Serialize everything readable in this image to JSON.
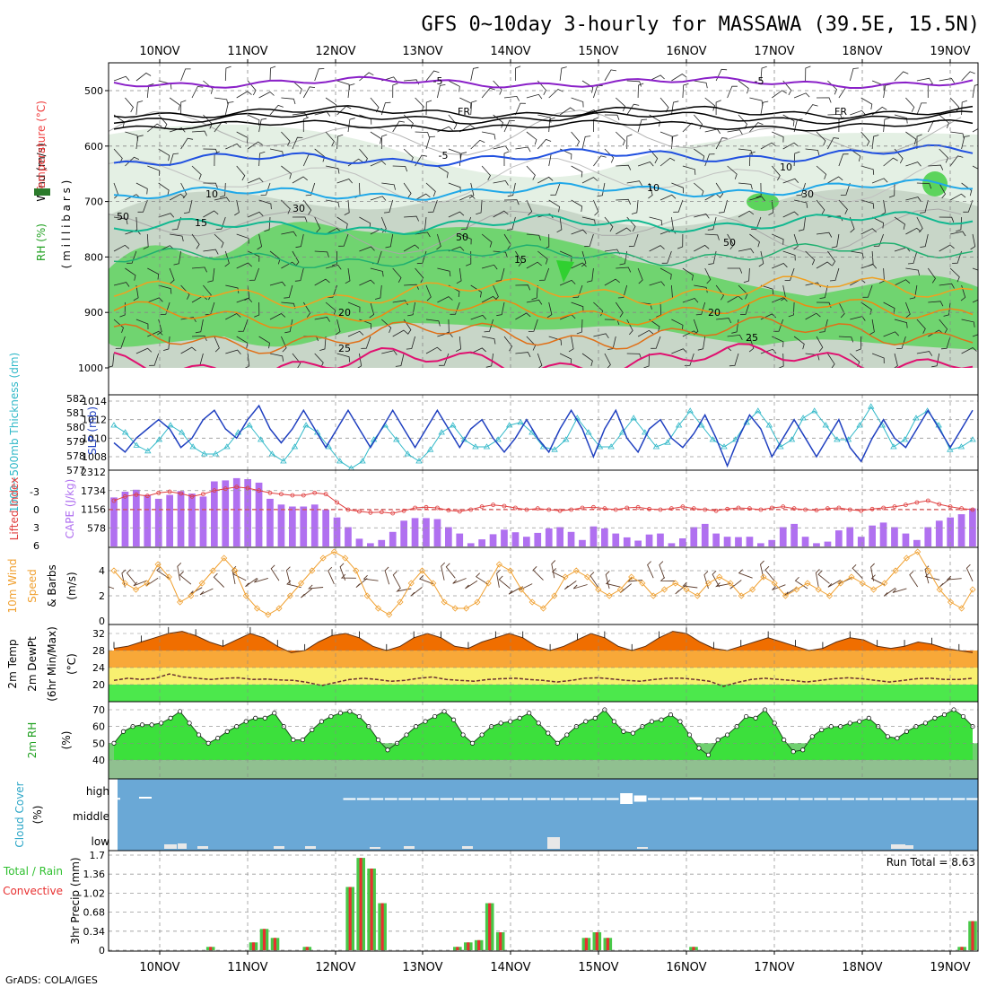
{
  "title": "GFS 0~10day 3-hourly for MASSAWA (39.5E, 15.5N)",
  "footer": "GrADS: COLA/IGES",
  "run_total": "Run Total = 8.63",
  "dates": [
    "10NOV",
    "11NOV",
    "12NOV",
    "13NOV",
    "14NOV",
    "15NOV",
    "16NOV",
    "17NOV",
    "18NOV",
    "19NOV"
  ],
  "colors": {
    "rh_light": "#e4f0e4",
    "rh_mid": "#c8d6c8",
    "rh_green": "#70d470",
    "cape": "#b070f0",
    "li": "#e04040",
    "slp": "#2040c0",
    "thick": "#30b8c8",
    "wind": "#f0a030",
    "temp_dark": "#f06e00",
    "temp_mid": "#f8a838",
    "temp_yellow": "#f8f070",
    "temp_green": "#4ce84c",
    "rh2m": "#3ce03c",
    "cloud": "#6aa8d6",
    "rain": "#48c848",
    "conv": "#e83030"
  },
  "panels": {
    "upper": {
      "ylabel_wind": "Wind (m/s)",
      "ylabel_temp": "Temperature (°C)",
      "ylabel_mb": "( m i l l i b a r s )",
      "ylabel_rh": "RH (%)",
      "yticks": [
        "500",
        "600",
        "700",
        "800",
        "900",
        "1000"
      ],
      "isotherm_labels": [
        "-5",
        "-5",
        "FR",
        "FR",
        "-5",
        "10",
        "10",
        "15",
        "15",
        "20",
        "20",
        "25",
        "25"
      ],
      "rh_labels": [
        "50",
        "30",
        "50",
        "10",
        "30",
        "50"
      ]
    },
    "slp": {
      "ylabel_thick": "1000~500mb Thickness (dm)",
      "ylabel_slp": "SLP (mb)",
      "left_ticks": [
        "582",
        "581",
        "580",
        "579",
        "578",
        "577"
      ],
      "right_ticks": [
        "1014",
        "1012",
        "1010",
        "1008"
      ]
    },
    "cape": {
      "ylabel_li": "Lifted Index",
      "ylabel_cape": "CAPE (J/kg)",
      "left_ticks": [
        "-3",
        "0",
        "3",
        "6"
      ],
      "right_ticks": [
        "2312",
        "1734",
        "1156",
        "578"
      ]
    },
    "wind10": {
      "ylabel1": "10m Wind",
      "ylabel2": "Speed",
      "ylabel3": "& Barbs",
      "ylabel4": "(m/s)",
      "ticks": [
        "4",
        "2",
        "0"
      ]
    },
    "temp2m": {
      "ylabel1": "2m Temp",
      "ylabel2": "2m DewPt",
      "ylabel3": "(6hr Min/Max)",
      "ylabel4": "(°C)",
      "ticks": [
        "32",
        "28",
        "24",
        "20"
      ]
    },
    "rh2m": {
      "ylabel1": "2m RH",
      "ylabel2": "(%)",
      "ticks": [
        "70",
        "60",
        "50",
        "40"
      ]
    },
    "cloud": {
      "ylabel1": "Cloud Cover",
      "ylabel2": "(%)",
      "levels": [
        "high",
        "middle",
        "low"
      ]
    },
    "precip": {
      "ylabel1": "Total / Rain",
      "ylabel2": "Convective",
      "ylabel3": "3hr Precip (mm)",
      "ticks": [
        "1.7",
        "1.36",
        "1.02",
        "0.68",
        "0.34",
        "0"
      ]
    }
  },
  "chart_data": {
    "type": "meteogram",
    "x": "3-hourly steps, 10NOV to 19NOV",
    "slp_mb": [
      1009.5,
      1008.5,
      1010,
      1011,
      1012,
      1011,
      1009,
      1010,
      1012,
      1013,
      1011,
      1010,
      1012,
      1013.5,
      1011,
      1009.5,
      1011,
      1013,
      1011,
      1009,
      1011,
      1013,
      1011,
      1009,
      1011,
      1013,
      1011,
      1009,
      1011,
      1013,
      1011,
      1009,
      1011,
      1012,
      1010,
      1008.5,
      1010,
      1012,
      1010,
      1008.5,
      1011,
      1013,
      1011,
      1008,
      1011,
      1013,
      1010,
      1008.5,
      1011,
      1012,
      1010,
      1009,
      1010.5,
      1012.5,
      1010,
      1007,
      1010,
      1012.5,
      1011,
      1008,
      1010,
      1012,
      1010,
      1008,
      1010,
      1012,
      1009,
      1007.5,
      1010,
      1012,
      1010,
      1009,
      1011,
      1013,
      1011,
      1009,
      1011,
      1013
    ],
    "thickness_dm": [
      580,
      579.5,
      578.6,
      578.2,
      579,
      580,
      579.5,
      578.5,
      578,
      578,
      578.5,
      579.5,
      580,
      579,
      578,
      577.5,
      578.5,
      580,
      579.5,
      578.5,
      577.5,
      577,
      577.5,
      579,
      580,
      579,
      578,
      577.5,
      578.3,
      579.5,
      580,
      579,
      578.5,
      578.5,
      579,
      580,
      580.2,
      579.5,
      578.5,
      578.3,
      579,
      580.5,
      579.5,
      578.5,
      578.5,
      579.5,
      580.5,
      579.5,
      578.5,
      578.8,
      580,
      581,
      580,
      579,
      578.5,
      579,
      580.2,
      581,
      580,
      578.5,
      579,
      580.5,
      581,
      580,
      579,
      579,
      580,
      581.3,
      580,
      578.5,
      579,
      580.5,
      581,
      580,
      578.3,
      578.5,
      579
    ],
    "lifted_index": [
      -1.5,
      -2.2,
      -2.5,
      -2.3,
      -2.8,
      -3,
      -2.7,
      -2.2,
      -2.6,
      -3.2,
      -3.5,
      -3.8,
      -3.6,
      -3.2,
      -2.8,
      -2.6,
      -2.4,
      -2.4,
      -2.8,
      -2.6,
      -1.2,
      0,
      0.3,
      0.5,
      0.4,
      0.6,
      0.2,
      -0.3,
      -0.4,
      -0.3,
      0.1,
      0.3,
      0,
      -0.5,
      -0.8,
      -0.6,
      -0.3,
      0,
      -0.2,
      0,
      0.2,
      0,
      -0.3,
      -0.4,
      -0.2,
      0,
      -0.3,
      -0.4,
      -0.1,
      0,
      -0.2,
      -0.5,
      -0.2,
      0,
      0.2,
      -0.1,
      -0.3,
      -0.2,
      0,
      -0.3,
      -0.5,
      -0.2,
      0,
      0.1,
      -0.2,
      -0.3,
      0,
      0.2,
      -0.1,
      -0.3,
      -0.5,
      -0.8,
      -1.2,
      -1.5,
      -0.9,
      -0.5,
      -0.2,
      0
    ],
    "cape_jkg": [
      1520,
      1700,
      1760,
      1600,
      1480,
      1600,
      1720,
      1640,
      1550,
      2020,
      2050,
      2120,
      2090,
      1980,
      1480,
      1300,
      1240,
      1240,
      1300,
      1140,
      900,
      600,
      240,
      100,
      200,
      450,
      800,
      880,
      880,
      850,
      600,
      400,
      100,
      220,
      380,
      520,
      440,
      300,
      420,
      560,
      600,
      450,
      200,
      620,
      560,
      400,
      280,
      180,
      370,
      400,
      100,
      250,
      600,
      700,
      400,
      300,
      290,
      300,
      100,
      200,
      600,
      700,
      300,
      100,
      150,
      500,
      600,
      300,
      650,
      740,
      600,
      400,
      200,
      600,
      800,
      900,
      1000,
      1180
    ],
    "wind10_ms": [
      4,
      3,
      2.5,
      3,
      4.5,
      3.5,
      1.5,
      2,
      3,
      4,
      5,
      4,
      2,
      1,
      0.5,
      1,
      2,
      3,
      4,
      5,
      5.5,
      5,
      4,
      2,
      1,
      0.5,
      1.5,
      3,
      4,
      3,
      1.5,
      1,
      1,
      1.5,
      3,
      4.5,
      4,
      2.5,
      1.5,
      1,
      2,
      3.5,
      4,
      3.5,
      2.5,
      2,
      2.5,
      3.5,
      3,
      2,
      2.5,
      3,
      2.5,
      2,
      3,
      3.5,
      3,
      2,
      2.5,
      3.5,
      3,
      2,
      2.5,
      3,
      2.5,
      2,
      3,
      3.5,
      3,
      2.5,
      3,
      4,
      5,
      5.5,
      4,
      2.5,
      1.5,
      1,
      2.5
    ],
    "temp2m_max_c": [
      28.5,
      29,
      30,
      31,
      32,
      32.5,
      31.5,
      30,
      29,
      30.5,
      32,
      31,
      29,
      27.5,
      28,
      30,
      31.5,
      32,
      31,
      29,
      28,
      29,
      31,
      32,
      31,
      29,
      28.5,
      30,
      31,
      32,
      31,
      29,
      28,
      29,
      30.5,
      32,
      31,
      29,
      28,
      29,
      31,
      32.5,
      32,
      30,
      28.5,
      28,
      29,
      30,
      31,
      30,
      29,
      28,
      28.5,
      30,
      31,
      30.5,
      29,
      28.5,
      29,
      30,
      29.5,
      28.5,
      28,
      27.5
    ],
    "dewpt2m_c": [
      21,
      21.5,
      21.2,
      21.5,
      22.5,
      21.8,
      21.5,
      21.2,
      21.5,
      21.6,
      21.2,
      21.3,
      21.1,
      21,
      20.5,
      19.8,
      20.5,
      21.2,
      21.5,
      21.2,
      20.8,
      21,
      21.5,
      21.8,
      21.2,
      21,
      20.8,
      21.2,
      21.4,
      21.5,
      21.2,
      21,
      20.6,
      21,
      21.5,
      21.6,
      21.3,
      21,
      20.8,
      21.2,
      21.5,
      21.5,
      21.2,
      20.8,
      19.6,
      20.5,
      21.2,
      21.5,
      21.2,
      21,
      20.6,
      21,
      21.4,
      21.6,
      21.4,
      21,
      20.6,
      21,
      21.4,
      21.5,
      21.2,
      21.2,
      21.5
    ],
    "rh2m_pct": [
      50,
      57,
      60,
      61,
      61,
      62,
      65,
      69,
      62,
      55,
      50,
      53,
      57,
      60,
      63,
      65,
      65,
      68,
      60,
      52,
      52,
      58,
      63,
      66,
      68,
      69,
      66,
      60,
      52,
      46,
      50,
      55,
      60,
      63,
      66,
      69,
      64,
      55,
      50,
      55,
      60,
      62,
      63,
      65,
      68,
      62,
      56,
      50,
      55,
      60,
      63,
      65,
      70,
      63,
      57,
      56,
      60,
      63,
      64,
      67,
      63,
      55,
      47,
      43,
      52,
      55,
      60,
      66,
      65,
      70,
      62,
      52,
      45,
      46,
      54,
      58,
      60,
      60,
      62,
      63,
      65,
      60,
      54,
      53,
      57,
      60,
      62,
      65,
      67,
      70,
      66,
      60
    ],
    "cloud_high_pct": [
      8,
      0,
      0,
      0,
      0,
      0,
      0,
      0,
      0,
      0,
      0,
      0,
      0,
      0,
      0,
      0,
      0,
      5,
      5,
      5,
      5,
      5,
      5,
      5,
      5,
      5,
      5,
      5,
      5,
      5,
      5,
      5,
      5,
      5,
      5,
      5,
      5,
      60,
      35,
      5,
      5,
      5,
      15,
      5,
      5,
      5,
      5,
      5,
      5,
      5,
      5,
      5,
      5,
      5,
      5,
      5,
      5,
      5,
      5,
      5,
      5,
      5,
      5
    ],
    "precip_total_mm": [
      0,
      0,
      0,
      0,
      0,
      0,
      0,
      0,
      0,
      0.06,
      0,
      0,
      0,
      0.14,
      0.38,
      0.22,
      0,
      0,
      0.06,
      0,
      0,
      0,
      1.13,
      1.65,
      1.46,
      0.84,
      0,
      0,
      0,
      0,
      0,
      0,
      0.06,
      0.14,
      0.18,
      0.84,
      0.32,
      0,
      0,
      0,
      0,
      0,
      0,
      0,
      0.22,
      0.32,
      0.22,
      0,
      0,
      0,
      0,
      0,
      0,
      0,
      0.06,
      0,
      0,
      0,
      0,
      0,
      0,
      0,
      0,
      0,
      0,
      0,
      0,
      0,
      0,
      0,
      0,
      0,
      0,
      0,
      0,
      0,
      0,
      0,
      0,
      0.06,
      0.52
    ]
  }
}
